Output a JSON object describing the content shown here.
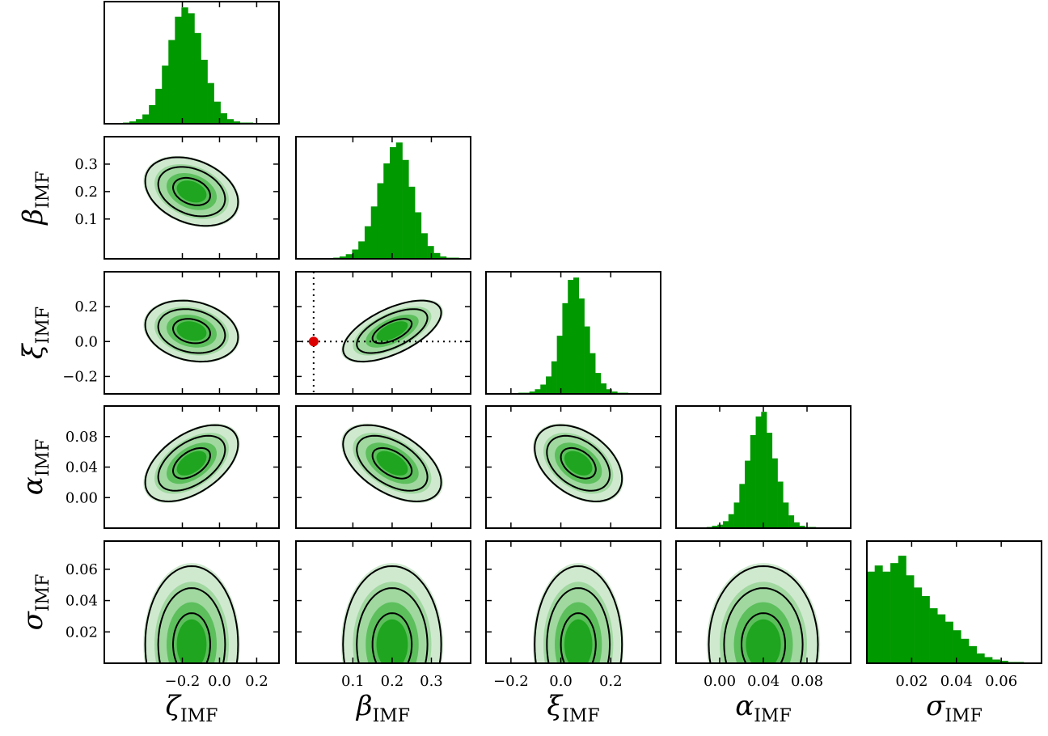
{
  "chart_data": [
    {
      "type": "histogram",
      "color": "#009900",
      "bins": [
        -0.52,
        -0.485,
        -0.45,
        -0.415,
        -0.38,
        -0.345,
        -0.31,
        -0.275,
        -0.24,
        -0.205,
        -0.17,
        -0.135,
        -0.1,
        -0.065,
        -0.03,
        0.005,
        0.04,
        0.075,
        0.11,
        0.145,
        0.18
      ],
      "counts": [
        1,
        2,
        4,
        8,
        16,
        30,
        50,
        72,
        92,
        100,
        95,
        78,
        55,
        35,
        19,
        9,
        4,
        2,
        1,
        1
      ],
      "xlim": [
        -0.62,
        0.32
      ],
      "ylim": [
        0,
        105
      ],
      "xticks": [
        {
          "value": -0.2,
          "label": "−0.2"
        },
        {
          "value": 0,
          "label": "0.0"
        },
        0.2
      ]
    },
    {
      "type": "contour",
      "center": [
        -0.15,
        0.2
      ],
      "sigma": [
        0.1,
        0.05
      ],
      "corr": -0.3,
      "fill_colors": [
        "#cfe9cf",
        "#a0d8a0",
        "#5cbf5c",
        "#1fa51f"
      ],
      "line_color": "#000000",
      "xlim": [
        -0.62,
        0.32
      ],
      "ylim": [
        -0.045,
        0.4
      ],
      "xticks": [
        {
          "value": -0.2,
          "label": "−0.2"
        },
        {
          "value": 0,
          "label": "0.0"
        },
        0.2
      ],
      "yticks": [
        0.1,
        0.2,
        0.3
      ],
      "ylabel": [
        "β",
        "IMF"
      ]
    },
    {
      "type": "histogram",
      "color": "#009900",
      "bins": [
        0.05,
        0.066,
        0.082,
        0.098,
        0.114,
        0.13,
        0.146,
        0.162,
        0.178,
        0.194,
        0.21,
        0.226,
        0.242,
        0.258,
        0.274,
        0.29,
        0.306,
        0.322,
        0.338,
        0.354,
        0.37
      ],
      "counts": [
        1,
        2,
        4,
        8,
        15,
        28,
        45,
        65,
        82,
        96,
        100,
        85,
        62,
        40,
        22,
        11,
        5,
        2,
        1,
        1
      ],
      "xlim": [
        -0.045,
        0.4
      ],
      "ylim": [
        0,
        105
      ],
      "xticks": [
        0.1,
        0.2,
        0.3
      ]
    },
    {
      "type": "contour",
      "center": [
        -0.15,
        0.06
      ],
      "sigma": [
        0.1,
        0.07
      ],
      "corr": -0.2,
      "fill_colors": [
        "#cfe9cf",
        "#a0d8a0",
        "#5cbf5c",
        "#1fa51f"
      ],
      "line_color": "#000000",
      "xlim": [
        -0.62,
        0.32
      ],
      "ylim": [
        -0.3,
        0.4
      ],
      "xticks": [
        {
          "value": -0.2,
          "label": "−0.2"
        },
        {
          "value": 0,
          "label": "0.0"
        },
        0.2
      ],
      "yticks": [
        {
          "value": -0.2,
          "label": "−0.2"
        },
        {
          "value": 0,
          "label": "0.0"
        },
        0.2
      ],
      "ylabel": [
        "ξ",
        "IMF"
      ]
    },
    {
      "type": "contour",
      "center": [
        0.2,
        0.06
      ],
      "sigma": [
        0.05,
        0.07
      ],
      "corr": 0.6,
      "fill_colors": [
        "#cfe9cf",
        "#a0d8a0",
        "#5cbf5c",
        "#1fa51f"
      ],
      "line_color": "#000000",
      "xlim": [
        -0.045,
        0.4
      ],
      "ylim": [
        -0.3,
        0.4
      ],
      "xticks": [
        0.1,
        0.2,
        0.3
      ],
      "yticks": [
        {
          "value": -0.2,
          "label": "−0.2"
        },
        {
          "value": 0,
          "label": "0.0"
        },
        0.2
      ],
      "reference": {
        "x": 0,
        "y": 0,
        "color": "#dd0000"
      }
    },
    {
      "type": "histogram",
      "color": "#009900",
      "bins": [
        -0.17,
        -0.148,
        -0.126,
        -0.104,
        -0.082,
        -0.06,
        -0.038,
        -0.016,
        0.006,
        0.028,
        0.05,
        0.072,
        0.094,
        0.116,
        0.138,
        0.16,
        0.182,
        0.204,
        0.226,
        0.248,
        0.27
      ],
      "counts": [
        1,
        1,
        2,
        4,
        8,
        15,
        28,
        50,
        78,
        98,
        100,
        82,
        58,
        35,
        18,
        9,
        4,
        2,
        1,
        1
      ],
      "xlim": [
        -0.3,
        0.4
      ],
      "ylim": [
        0,
        105
      ],
      "xticks": [
        {
          "value": -0.2,
          "label": "−0.2"
        },
        {
          "value": 0,
          "label": "0.0"
        },
        0.2
      ]
    },
    {
      "type": "contour",
      "center": [
        -0.15,
        0.045
      ],
      "sigma": [
        0.1,
        0.02
      ],
      "corr": 0.5,
      "fill_colors": [
        "#cfe9cf",
        "#a0d8a0",
        "#5cbf5c",
        "#1fa51f"
      ],
      "line_color": "#000000",
      "xlim": [
        -0.62,
        0.32
      ],
      "ylim": [
        -0.04,
        0.12
      ],
      "xticks": [
        {
          "value": -0.2,
          "label": "−0.2"
        },
        {
          "value": 0,
          "label": "0.0"
        },
        0.2
      ],
      "yticks": [
        {
          "value": 0,
          "label": "0.00"
        },
        0.04,
        0.08
      ],
      "ylabel": [
        "α",
        "IMF"
      ]
    },
    {
      "type": "contour",
      "center": [
        0.2,
        0.045
      ],
      "sigma": [
        0.05,
        0.02
      ],
      "corr": -0.5,
      "fill_colors": [
        "#cfe9cf",
        "#a0d8a0",
        "#5cbf5c",
        "#1fa51f"
      ],
      "line_color": "#000000",
      "xlim": [
        -0.045,
        0.4
      ],
      "ylim": [
        -0.04,
        0.12
      ],
      "xticks": [
        0.1,
        0.2,
        0.3
      ],
      "yticks": [
        {
          "value": 0,
          "label": "0.00"
        },
        0.04,
        0.08
      ]
    },
    {
      "type": "contour",
      "center": [
        0.07,
        0.045
      ],
      "sigma": [
        0.07,
        0.02
      ],
      "corr": -0.4,
      "fill_colors": [
        "#cfe9cf",
        "#a0d8a0",
        "#5cbf5c",
        "#1fa51f"
      ],
      "line_color": "#000000",
      "xlim": [
        -0.3,
        0.4
      ],
      "ylim": [
        -0.04,
        0.12
      ],
      "xticks": [
        {
          "value": -0.2,
          "label": "−0.2"
        },
        {
          "value": 0,
          "label": "0.0"
        },
        0.2
      ],
      "yticks": [
        {
          "value": 0,
          "label": "0.00"
        },
        0.04,
        0.08
      ]
    },
    {
      "type": "histogram",
      "color": "#009900",
      "bins": [
        -0.012,
        -0.007,
        -0.002,
        0.003,
        0.008,
        0.013,
        0.018,
        0.023,
        0.028,
        0.033,
        0.038,
        0.043,
        0.048,
        0.053,
        0.058,
        0.063,
        0.068,
        0.073,
        0.078,
        0.083,
        0.088
      ],
      "counts": [
        1,
        2,
        3,
        6,
        12,
        22,
        38,
        58,
        80,
        96,
        100,
        82,
        60,
        40,
        22,
        11,
        5,
        2,
        1,
        1
      ],
      "xlim": [
        -0.04,
        0.12
      ],
      "ylim": [
        0,
        105
      ],
      "xticks": [
        {
          "value": 0,
          "label": "0.00"
        },
        0.04,
        0.08
      ]
    },
    {
      "type": "contour",
      "center": [
        -0.15,
        0.012
      ],
      "sigma": [
        0.1,
        0.02
      ],
      "corr": 0,
      "fill_colors": [
        "#cfe9cf",
        "#a0d8a0",
        "#5cbf5c",
        "#1fa51f"
      ],
      "line_color": "#000000",
      "xlim": [
        -0.62,
        0.32
      ],
      "ylim": [
        0,
        0.078
      ],
      "xticks": [
        {
          "value": -0.2,
          "label": "−0.2"
        },
        {
          "value": 0,
          "label": "0.0"
        },
        0.2
      ],
      "yticks": [
        0.02,
        0.04,
        0.06
      ],
      "xlabel": [
        "ζ",
        "IMF"
      ],
      "ylabel": [
        "σ",
        "IMF"
      ]
    },
    {
      "type": "contour",
      "center": [
        0.2,
        0.012
      ],
      "sigma": [
        0.05,
        0.02
      ],
      "corr": 0,
      "fill_colors": [
        "#cfe9cf",
        "#a0d8a0",
        "#5cbf5c",
        "#1fa51f"
      ],
      "line_color": "#000000",
      "xlim": [
        -0.045,
        0.4
      ],
      "ylim": [
        0,
        0.078
      ],
      "xticks": [
        0.1,
        0.2,
        0.3
      ],
      "yticks": [
        0.02,
        0.04,
        0.06
      ],
      "xlabel": [
        "β",
        "IMF"
      ]
    },
    {
      "type": "contour",
      "center": [
        0.07,
        0.012
      ],
      "sigma": [
        0.07,
        0.02
      ],
      "corr": 0,
      "fill_colors": [
        "#cfe9cf",
        "#a0d8a0",
        "#5cbf5c",
        "#1fa51f"
      ],
      "line_color": "#000000",
      "xlim": [
        -0.3,
        0.4
      ],
      "ylim": [
        0,
        0.078
      ],
      "xticks": [
        {
          "value": -0.2,
          "label": "−0.2"
        },
        {
          "value": 0,
          "label": "0.0"
        },
        0.2
      ],
      "yticks": [
        0.02,
        0.04,
        0.06
      ],
      "xlabel": [
        "ξ",
        "IMF"
      ]
    },
    {
      "type": "contour",
      "center": [
        0.04,
        0.012
      ],
      "sigma": [
        0.02,
        0.02
      ],
      "corr": 0,
      "fill_colors": [
        "#cfe9cf",
        "#a0d8a0",
        "#5cbf5c",
        "#1fa51f"
      ],
      "line_color": "#000000",
      "xlim": [
        -0.04,
        0.12
      ],
      "ylim": [
        0,
        0.078
      ],
      "xticks": [
        {
          "value": 0,
          "label": "0.00"
        },
        0.04,
        0.08
      ],
      "yticks": [
        0.02,
        0.04,
        0.06
      ],
      "xlabel": [
        "α",
        "IMF"
      ]
    },
    {
      "type": "histogram",
      "color": "#009900",
      "bins": [
        0,
        0.0035,
        0.007,
        0.0105,
        0.014,
        0.0175,
        0.021,
        0.0245,
        0.028,
        0.0315,
        0.035,
        0.0385,
        0.042,
        0.0455,
        0.049,
        0.0525,
        0.056,
        0.0595,
        0.063,
        0.0665,
        0.07
      ],
      "counts": [
        75,
        80,
        75,
        82,
        88,
        72,
        62,
        55,
        45,
        40,
        34,
        27,
        20,
        14,
        8,
        5,
        3,
        2,
        1,
        1
      ],
      "xlim": [
        0,
        0.078
      ],
      "ylim": [
        0,
        100
      ],
      "xticks": [
        0.02,
        0.04,
        0.06
      ],
      "xlabel": [
        "σ",
        "IMF"
      ]
    }
  ]
}
